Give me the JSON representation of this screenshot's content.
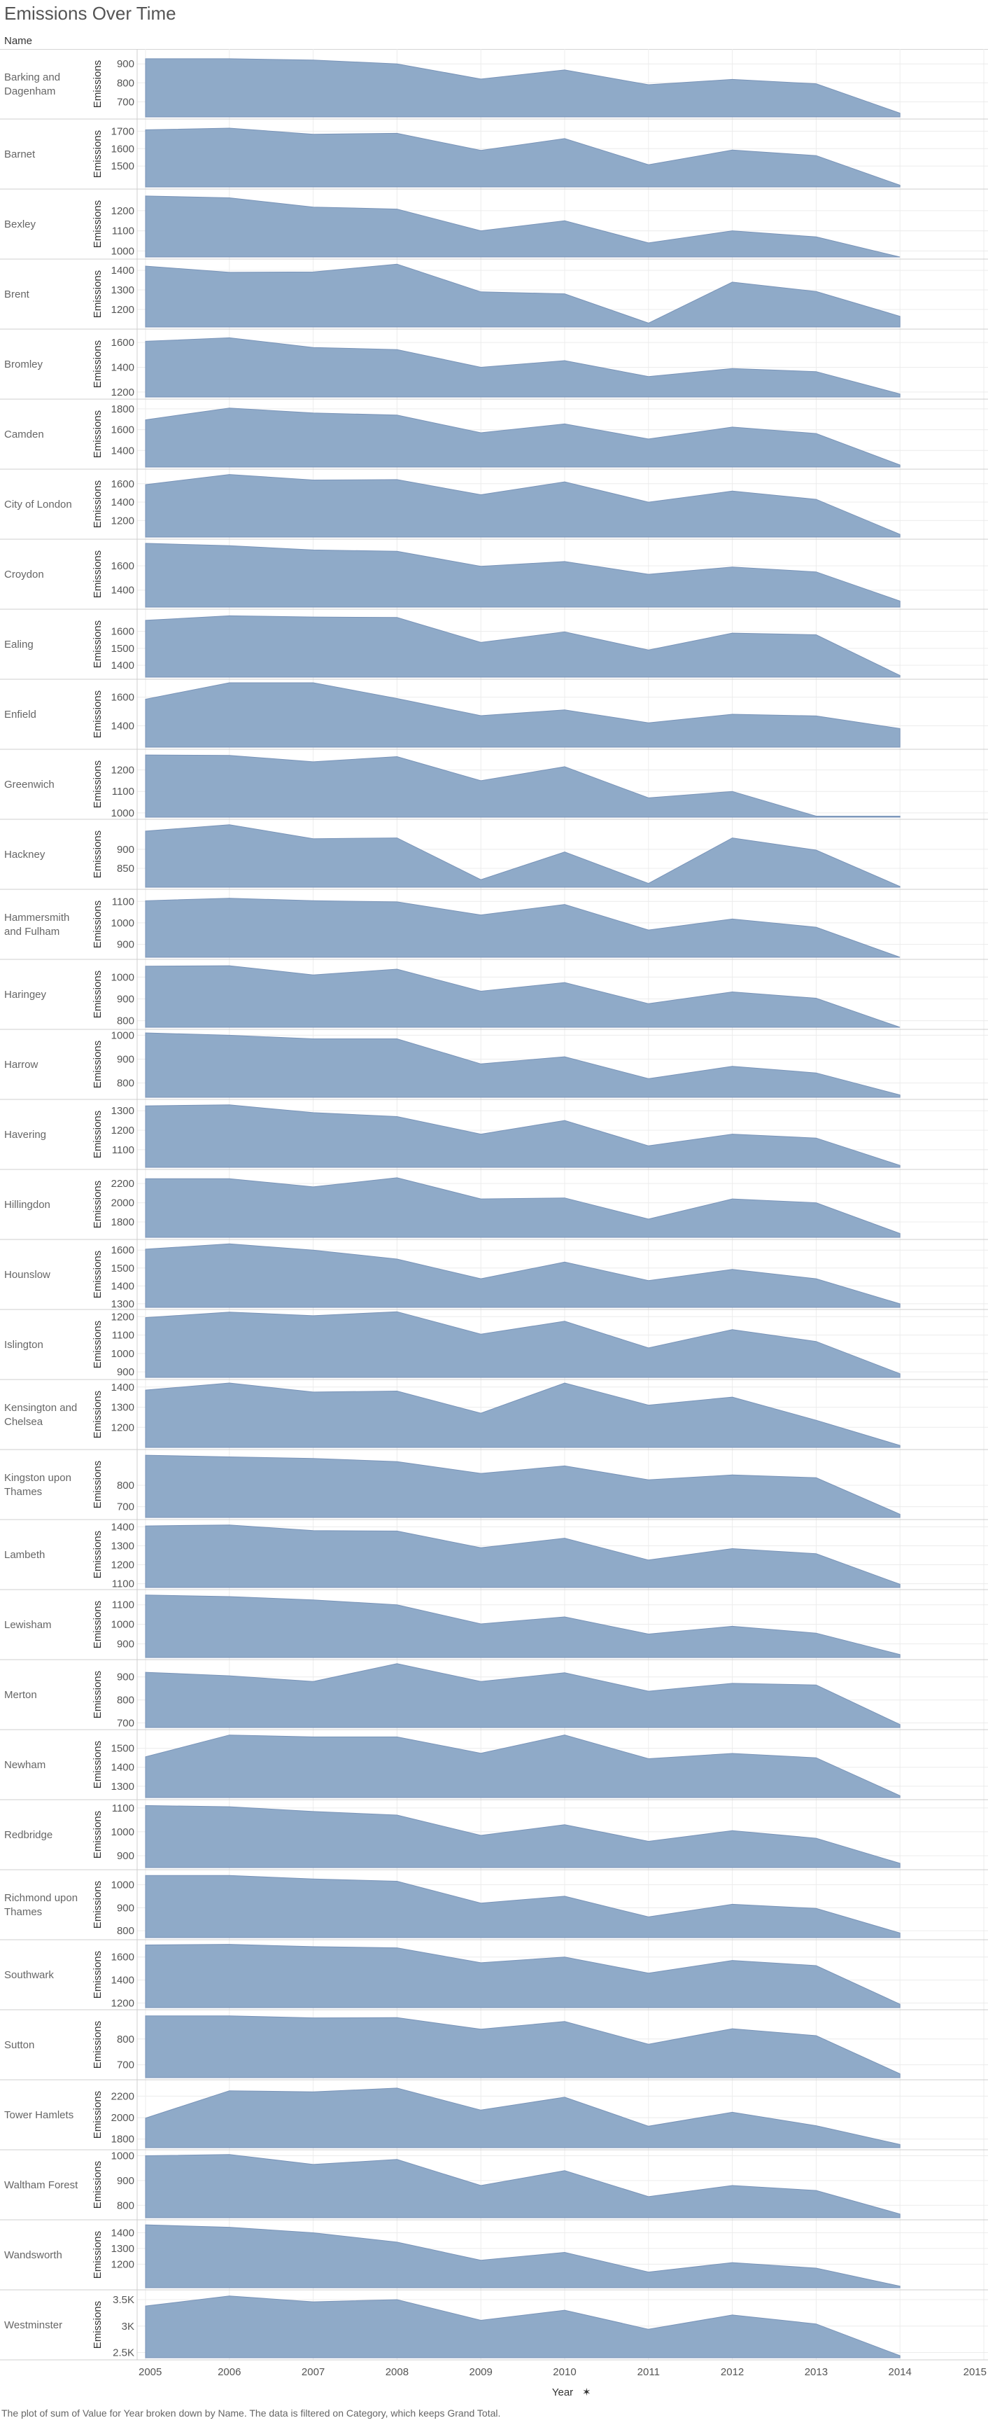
{
  "title": "Emissions Over Time",
  "row_header": "Name",
  "footnote": "The plot of sum of Value for Year broken down by Name. The data is filtered on Category, which keeps Grand Total.",
  "colors": {
    "area": "#8faac8",
    "area_stroke": "#7893b8",
    "grid": "#ececec",
    "divider": "#cfcfcf"
  },
  "chart_data": {
    "type": "area",
    "x_label": "Year",
    "y_label": "Emissions",
    "x_ticks": [
      2005,
      2006,
      2007,
      2008,
      2009,
      2010,
      2011,
      2012,
      2013,
      2014,
      2015
    ],
    "x": [
      2005,
      2006,
      2007,
      2008,
      2009,
      2010,
      2011,
      2012,
      2013,
      2014
    ],
    "xlim": [
      2004.9,
      2015.05
    ],
    "panels": [
      {
        "name": "Barking and Dagenham",
        "label_lines": [
          "Barking and",
          "Dagenham"
        ],
        "ylim": [
          620,
          960
        ],
        "ticks": [
          700,
          800,
          900
        ],
        "tick_labels": [
          "700",
          "800",
          "900"
        ],
        "values": [
          927,
          927,
          920,
          900,
          820,
          868,
          790,
          818,
          795,
          640
        ]
      },
      {
        "name": "Barnet",
        "label_lines": [
          "Barnet"
        ],
        "ylim": [
          1380,
          1750
        ],
        "ticks": [
          1500,
          1600,
          1700
        ],
        "tick_labels": [
          "1500",
          "1600",
          "1700"
        ],
        "values": [
          1708,
          1718,
          1683,
          1688,
          1590,
          1658,
          1508,
          1592,
          1560,
          1390
        ]
      },
      {
        "name": "Bexley",
        "label_lines": [
          "Bexley"
        ],
        "ylim": [
          970,
          1290
        ],
        "ticks": [
          1000,
          1100,
          1200
        ],
        "tick_labels": [
          "1000",
          "1100",
          "1200"
        ],
        "values": [
          1273,
          1264,
          1218,
          1208,
          1100,
          1150,
          1040,
          1100,
          1070,
          970
        ]
      },
      {
        "name": "Brent",
        "label_lines": [
          "Brent"
        ],
        "ylim": [
          1110,
          1440
        ],
        "ticks": [
          1200,
          1300,
          1400
        ],
        "tick_labels": [
          "1200",
          "1300",
          "1400"
        ],
        "values": [
          1422,
          1390,
          1392,
          1432,
          1290,
          1280,
          1130,
          1340,
          1292,
          1165
        ]
      },
      {
        "name": "Bromley",
        "label_lines": [
          "Bromley"
        ],
        "ylim": [
          1160,
          1680
        ],
        "ticks": [
          1200,
          1400,
          1600
        ],
        "tick_labels": [
          "1200",
          "1400",
          "1600"
        ],
        "values": [
          1610,
          1638,
          1560,
          1543,
          1400,
          1454,
          1325,
          1390,
          1365,
          1185
        ]
      },
      {
        "name": "Camden",
        "label_lines": [
          "Camden"
        ],
        "ylim": [
          1240,
          1860
        ],
        "ticks": [
          1400,
          1600,
          1800
        ],
        "tick_labels": [
          "1400",
          "1600",
          "1800"
        ],
        "values": [
          1695,
          1808,
          1760,
          1740,
          1570,
          1655,
          1510,
          1625,
          1563,
          1260
        ]
      },
      {
        "name": "City of London",
        "label_lines": [
          "City of London"
        ],
        "ylim": [
          1020,
          1720
        ],
        "ticks": [
          1200,
          1400,
          1600
        ],
        "tick_labels": [
          "1200",
          "1400",
          "1600"
        ],
        "values": [
          1590,
          1700,
          1640,
          1645,
          1480,
          1620,
          1400,
          1520,
          1430,
          1050
        ]
      },
      {
        "name": "Croydon",
        "label_lines": [
          "Croydon"
        ],
        "ylim": [
          1260,
          1790
        ],
        "ticks": [
          1400,
          1600
        ],
        "tick_labels": [
          "1400",
          "1600"
        ],
        "values": [
          1785,
          1765,
          1730,
          1720,
          1595,
          1635,
          1530,
          1590,
          1550,
          1310
        ]
      },
      {
        "name": "Ealing",
        "label_lines": [
          "Ealing"
        ],
        "ylim": [
          1330,
          1710
        ],
        "ticks": [
          1400,
          1500,
          1600
        ],
        "tick_labels": [
          "1400",
          "1500",
          "1600"
        ],
        "values": [
          1665,
          1692,
          1685,
          1682,
          1535,
          1597,
          1490,
          1590,
          1580,
          1340
        ]
      },
      {
        "name": "Enfield",
        "label_lines": [
          "Enfield"
        ],
        "ylim": [
          1250,
          1700
        ],
        "ticks": [
          1400,
          1600
        ],
        "tick_labels": [
          "1400",
          "1600"
        ],
        "values": [
          1585,
          1700,
          1700,
          1590,
          1470,
          1510,
          1420,
          1480,
          1468,
          1380
        ]
      },
      {
        "name": "Greenwich",
        "label_lines": [
          "Greenwich"
        ],
        "ylim": [
          980,
          1280
        ],
        "ticks": [
          1000,
          1100,
          1200
        ],
        "tick_labels": [
          "1000",
          "1100",
          "1200"
        ],
        "values": [
          1270,
          1268,
          1238,
          1262,
          1150,
          1215,
          1070,
          1100,
          985,
          985
        ]
      },
      {
        "name": "Hackney",
        "label_lines": [
          "Hackney"
        ],
        "ylim": [
          800,
          970
        ],
        "ticks": [
          850,
          900
        ],
        "tick_labels": [
          "850",
          "900"
        ],
        "values": [
          948,
          965,
          928,
          930,
          820,
          893,
          810,
          930,
          898,
          802
        ]
      },
      {
        "name": "Hammersmith and Fulham",
        "label_lines": [
          "Hammersmith",
          "and Fulham"
        ],
        "ylim": [
          840,
          1140
        ],
        "ticks": [
          900,
          1000,
          1100
        ],
        "tick_labels": [
          "900",
          "1000",
          "1100"
        ],
        "values": [
          1103,
          1115,
          1103,
          1098,
          1037,
          1086,
          967,
          1018,
          980,
          840
        ]
      },
      {
        "name": "Haringey",
        "label_lines": [
          "Haringey"
        ],
        "ylim": [
          770,
          1065
        ],
        "ticks": [
          800,
          900,
          1000
        ],
        "tick_labels": [
          "800",
          "900",
          "1000"
        ],
        "values": [
          1050,
          1052,
          1010,
          1036,
          935,
          975,
          878,
          932,
          903,
          770
        ]
      },
      {
        "name": "Harrow",
        "label_lines": [
          "Harrow"
        ],
        "ylim": [
          740,
          1010
        ],
        "ticks": [
          800,
          900,
          1000
        ],
        "tick_labels": [
          "800",
          "900",
          "1000"
        ],
        "values": [
          1010,
          1000,
          985,
          985,
          880,
          910,
          818,
          870,
          842,
          750
        ]
      },
      {
        "name": "Havering",
        "label_lines": [
          "Havering"
        ],
        "ylim": [
          1010,
          1340
        ],
        "ticks": [
          1100,
          1200,
          1300
        ],
        "tick_labels": [
          "1100",
          "1200",
          "1300"
        ],
        "values": [
          1325,
          1330,
          1290,
          1270,
          1180,
          1250,
          1120,
          1180,
          1160,
          1020
        ]
      },
      {
        "name": "Hillingdon",
        "label_lines": [
          "Hillingdon"
        ],
        "ylim": [
          1640,
          2310
        ],
        "ticks": [
          1800,
          2000,
          2200
        ],
        "tick_labels": [
          "1800",
          "2000",
          "2200"
        ],
        "values": [
          2250,
          2250,
          2165,
          2260,
          2040,
          2050,
          1830,
          2040,
          2000,
          1680
        ]
      },
      {
        "name": "Hounslow",
        "label_lines": [
          "Hounslow"
        ],
        "ylim": [
          1280,
          1640
        ],
        "ticks": [
          1300,
          1400,
          1500,
          1600
        ],
        "tick_labels": [
          "1300",
          "1400",
          "1500",
          "1600"
        ],
        "values": [
          1605,
          1635,
          1600,
          1550,
          1440,
          1533,
          1430,
          1492,
          1440,
          1300
        ]
      },
      {
        "name": "Islington",
        "label_lines": [
          "Islington"
        ],
        "ylim": [
          870,
          1220
        ],
        "ticks": [
          900,
          1000,
          1100,
          1200
        ],
        "tick_labels": [
          "900",
          "1000",
          "1100",
          "1200"
        ],
        "values": [
          1195,
          1225,
          1205,
          1227,
          1105,
          1175,
          1030,
          1130,
          1065,
          890
        ]
      },
      {
        "name": "Kensington and Chelsea",
        "label_lines": [
          "Kensington and",
          "Chelsea"
        ],
        "ylim": [
          1100,
          1420
        ],
        "ticks": [
          1200,
          1300,
          1400
        ],
        "tick_labels": [
          "1200",
          "1300",
          "1400"
        ],
        "values": [
          1385,
          1420,
          1375,
          1380,
          1270,
          1420,
          1310,
          1350,
          1235,
          1110
        ]
      },
      {
        "name": "Kingston upon Thames",
        "label_lines": [
          "Kingston upon",
          "Thames"
        ],
        "ylim": [
          650,
          950
        ],
        "ticks": [
          700,
          800
        ],
        "tick_labels": [
          "700",
          "800"
        ],
        "values": [
          940,
          932,
          925,
          910,
          855,
          890,
          825,
          848,
          835,
          665
        ]
      },
      {
        "name": "Lambeth",
        "label_lines": [
          "Lambeth"
        ],
        "ylim": [
          1080,
          1420
        ],
        "ticks": [
          1100,
          1200,
          1300,
          1400
        ],
        "tick_labels": [
          "1100",
          "1200",
          "1300",
          "1400"
        ],
        "values": [
          1405,
          1410,
          1380,
          1378,
          1290,
          1340,
          1225,
          1285,
          1258,
          1097
        ]
      },
      {
        "name": "Lewisham",
        "label_lines": [
          "Lewisham"
        ],
        "ylim": [
          830,
          1160
        ],
        "ticks": [
          900,
          1000,
          1100
        ],
        "tick_labels": [
          "900",
          "1000",
          "1100"
        ],
        "values": [
          1150,
          1142,
          1125,
          1100,
          1002,
          1038,
          950,
          990,
          955,
          845
        ]
      },
      {
        "name": "Merton",
        "label_lines": [
          "Merton"
        ],
        "ylim": [
          680,
          960
        ],
        "ticks": [
          700,
          800,
          900
        ],
        "tick_labels": [
          "700",
          "800",
          "900"
        ],
        "values": [
          920,
          905,
          880,
          958,
          880,
          918,
          838,
          872,
          865,
          693
        ]
      },
      {
        "name": "Newham",
        "label_lines": [
          "Newham"
        ],
        "ylim": [
          1240,
          1580
        ],
        "ticks": [
          1300,
          1400,
          1500
        ],
        "tick_labels": [
          "1300",
          "1400",
          "1500"
        ],
        "values": [
          1455,
          1570,
          1560,
          1560,
          1474,
          1570,
          1445,
          1473,
          1450,
          1250
        ]
      },
      {
        "name": "Redbridge",
        "label_lines": [
          "Redbridge"
        ],
        "ylim": [
          850,
          1120
        ],
        "ticks": [
          900,
          1000,
          1100
        ],
        "tick_labels": [
          "900",
          "1000",
          "1100"
        ],
        "values": [
          1110,
          1105,
          1085,
          1070,
          985,
          1030,
          960,
          1005,
          973,
          868
        ]
      },
      {
        "name": "Richmond upon Thames",
        "label_lines": [
          "Richmond upon",
          "Thames"
        ],
        "ylim": [
          770,
          1050
        ],
        "ticks": [
          800,
          900,
          1000
        ],
        "tick_labels": [
          "800",
          "900",
          "1000"
        ],
        "values": [
          1040,
          1040,
          1025,
          1015,
          920,
          950,
          860,
          915,
          897,
          790
        ]
      },
      {
        "name": "Southwark",
        "label_lines": [
          "Southwark"
        ],
        "ylim": [
          1160,
          1720
        ],
        "ticks": [
          1200,
          1400,
          1600
        ],
        "tick_labels": [
          "1200",
          "1400",
          "1600"
        ],
        "values": [
          1705,
          1710,
          1690,
          1680,
          1550,
          1600,
          1460,
          1570,
          1525,
          1190
        ]
      },
      {
        "name": "Sutton",
        "label_lines": [
          "Sutton"
        ],
        "ylim": [
          650,
          900
        ],
        "ticks": [
          700,
          800
        ],
        "tick_labels": [
          "700",
          "800"
        ],
        "values": [
          890,
          890,
          882,
          883,
          838,
          868,
          780,
          840,
          813,
          665
        ]
      },
      {
        "name": "Tower Hamlets",
        "label_lines": [
          "Tower Hamlets"
        ],
        "ylim": [
          1720,
          2320
        ],
        "ticks": [
          1800,
          2000,
          2200
        ],
        "tick_labels": [
          "1800",
          "2000",
          "2200"
        ],
        "values": [
          1995,
          2250,
          2240,
          2275,
          2070,
          2190,
          1920,
          2050,
          1925,
          1750
        ]
      },
      {
        "name": "Waltham Forest",
        "label_lines": [
          "Waltham Forest"
        ],
        "ylim": [
          750,
          1010
        ],
        "ticks": [
          800,
          900,
          1000
        ],
        "tick_labels": [
          "800",
          "900",
          "1000"
        ],
        "values": [
          1000,
          1005,
          965,
          985,
          880,
          940,
          835,
          880,
          860,
          765
        ]
      },
      {
        "name": "Wandsworth",
        "label_lines": [
          "Wandsworth"
        ],
        "ylim": [
          1050,
          1460
        ],
        "ticks": [
          1200,
          1300,
          1400
        ],
        "tick_labels": [
          "1200",
          "1300",
          "1400"
        ],
        "values": [
          1450,
          1435,
          1400,
          1340,
          1225,
          1275,
          1150,
          1210,
          1175,
          1060
        ]
      },
      {
        "name": "Westminster",
        "label_lines": [
          "Westminster"
        ],
        "ylim": [
          2400,
          3620
        ],
        "ticks": [
          2500,
          3000,
          3500
        ],
        "tick_labels": [
          "2.5K",
          "3K",
          "3.5K"
        ],
        "values": [
          3380,
          3570,
          3460,
          3500,
          3110,
          3300,
          2940,
          3210,
          3040,
          2440
        ]
      }
    ]
  }
}
